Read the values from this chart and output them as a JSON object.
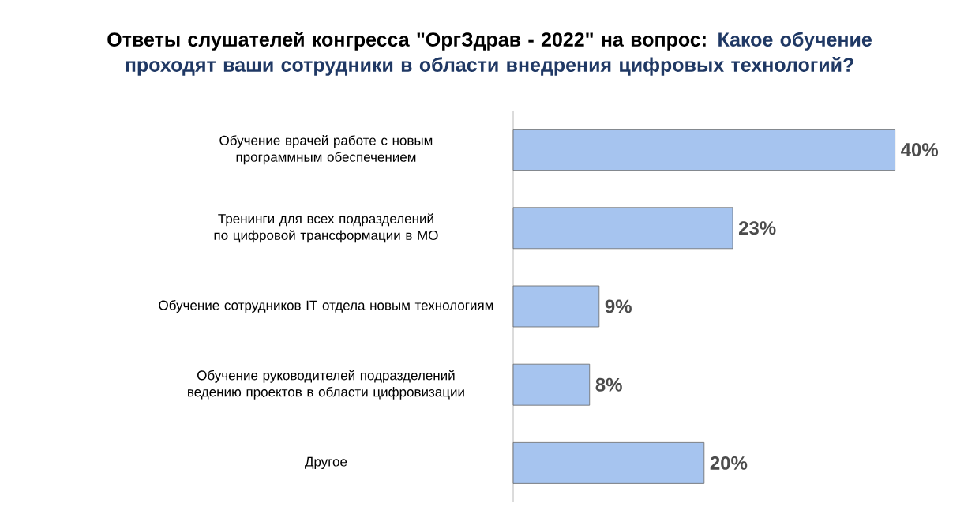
{
  "chart_data": {
    "type": "bar",
    "orientation": "horizontal",
    "title": "Ответы слушателей конгресса \"ОргЗдрав - 2022\" на вопрос:",
    "subtitle": "Какое обучение проходят ваши сотрудники в области внедрения цифровых технологий?",
    "categories": [
      "Обучение врачей работе с новым программным обеспечением",
      "Тренинги для всех подразделений по цифровой трансформации в МО",
      "Обучение сотрудников IT отдела новым технологиям",
      "Обучение руководителей подразделений ведению проектов в области цифровизации",
      "Другое"
    ],
    "values": [
      40,
      23,
      9,
      8,
      20
    ],
    "value_labels": [
      "40%",
      "23%",
      "9%",
      "8%",
      "20%"
    ],
    "color": "#a6c4ef"
  }
}
